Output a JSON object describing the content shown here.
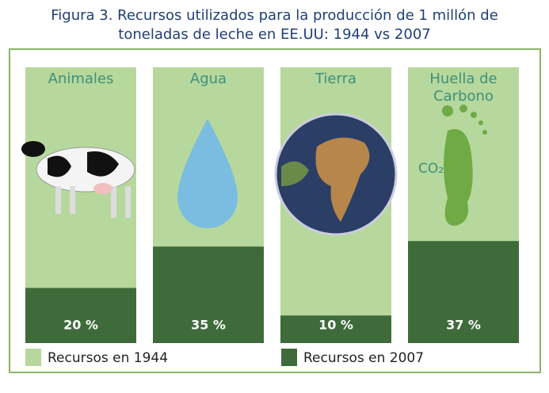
{
  "chart_data": {
    "type": "bar",
    "title": "Figura 3. Recursos utilizados para la producción de 1 millón de toneladas de leche en EE.UU: 1944 vs 2007",
    "categories": [
      "Animales",
      "Agua",
      "Tierra",
      "Huella de Carbono"
    ],
    "series": [
      {
        "name": "Recursos en 1944",
        "color": "#b6d89c",
        "values": [
          100,
          100,
          100,
          100
        ]
      },
      {
        "name": "Recursos en 2007",
        "color": "#3f6b3b",
        "values": [
          20,
          35,
          10,
          37
        ],
        "value_labels": [
          "20 %",
          "35 %",
          "10 %",
          "37 %"
        ]
      }
    ],
    "ylim": [
      0,
      100
    ],
    "annotations": [
      "CO₂"
    ]
  }
}
